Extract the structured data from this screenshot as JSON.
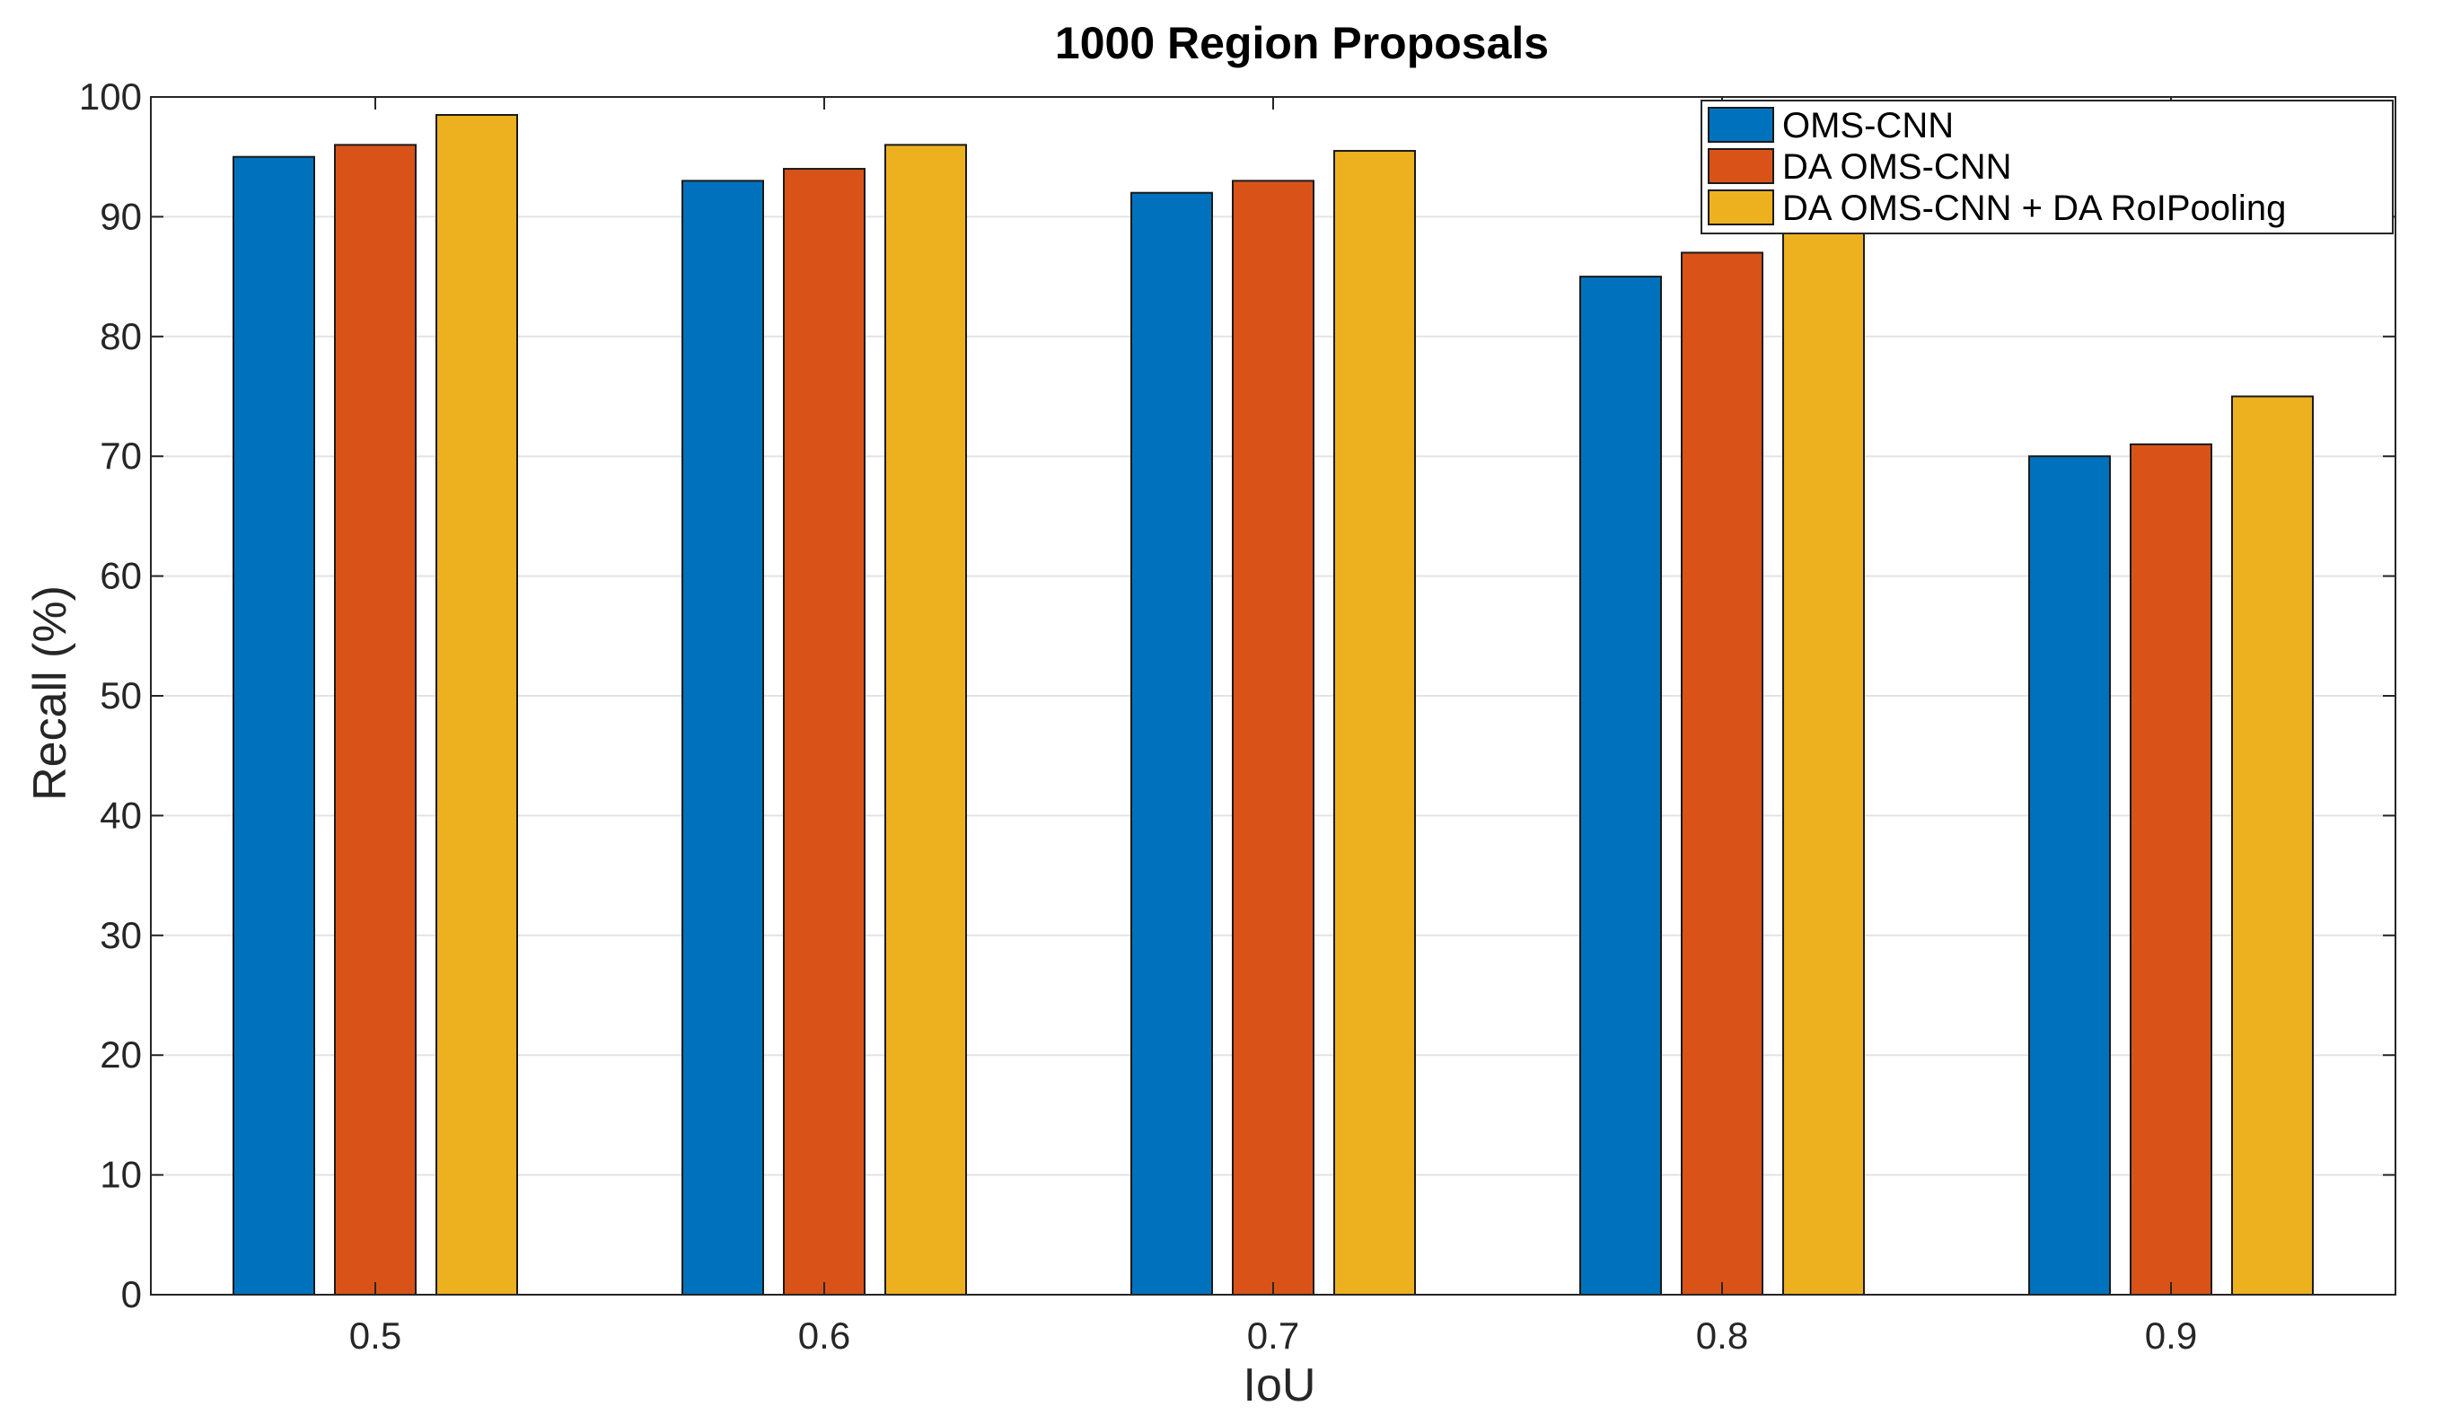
{
  "chart_data": {
    "type": "bar",
    "title": "1000 Region Proposals",
    "xlabel": "IoU",
    "ylabel": "Recall (%)",
    "categories": [
      "0.5",
      "0.6",
      "0.7",
      "0.8",
      "0.9"
    ],
    "ylim": [
      0,
      100
    ],
    "yticks": [
      0,
      10,
      20,
      30,
      40,
      50,
      60,
      70,
      80,
      90,
      100
    ],
    "grid": true,
    "legend_position": "top-right",
    "series": [
      {
        "name": "OMS-CNN",
        "color": "#0072BD",
        "values": [
          95,
          93,
          92,
          85,
          70
        ]
      },
      {
        "name": "DA OMS-CNN",
        "color": "#D95319",
        "values": [
          96,
          94,
          93,
          87,
          71
        ]
      },
      {
        "name": "DA OMS-CNN + DA RoIPooling",
        "color": "#EDB120",
        "values": [
          98.5,
          96,
          95.5,
          89,
          75
        ]
      }
    ]
  }
}
